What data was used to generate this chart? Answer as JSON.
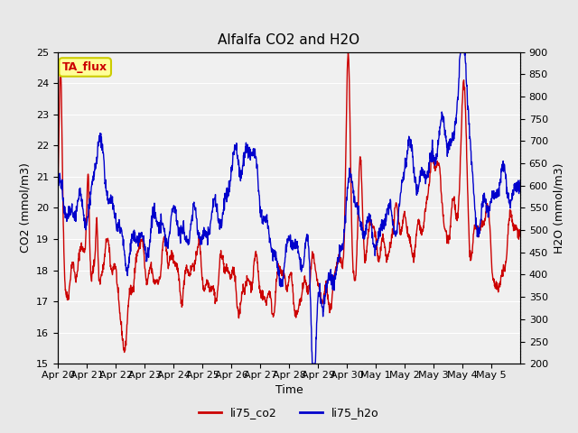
{
  "title": "Alfalfa CO2 and H2O",
  "xlabel": "Time",
  "ylabel_left": "CO2 (mmol/m3)",
  "ylabel_right": "H2O (mmol/m3)",
  "ylim_left": [
    15.0,
    25.0
  ],
  "ylim_right": [
    200,
    900
  ],
  "yticks_left": [
    15.0,
    16.0,
    17.0,
    18.0,
    19.0,
    20.0,
    21.0,
    22.0,
    23.0,
    24.0,
    25.0
  ],
  "yticks_right": [
    200,
    250,
    300,
    350,
    400,
    450,
    500,
    550,
    600,
    650,
    700,
    750,
    800,
    850,
    900
  ],
  "xtick_labels": [
    "Apr 20",
    "Apr 21",
    "Apr 22",
    "Apr 23",
    "Apr 24",
    "Apr 25",
    "Apr 26",
    "Apr 27",
    "Apr 28",
    "Apr 29",
    "Apr 30",
    "May 1",
    "May 2",
    "May 3",
    "May 4",
    "May 5"
  ],
  "color_co2": "#cc0000",
  "color_h2o": "#0000cc",
  "label_co2": "li75_co2",
  "label_h2o": "li75_h2o",
  "annotation_text": "TA_flux",
  "annotation_color": "#cc0000",
  "annotation_bg": "#ffff99",
  "annotation_border": "#cccc00",
  "bg_color": "#e8e8e8",
  "plot_bg_color": "#f0f0f0",
  "grid_color": "#ffffff",
  "title_fontsize": 11,
  "axis_label_fontsize": 9,
  "tick_fontsize": 8,
  "linewidth": 1.0
}
